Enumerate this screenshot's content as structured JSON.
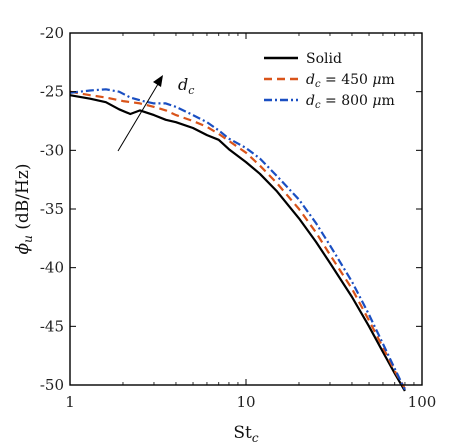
{
  "chart_data": {
    "type": "line",
    "xlabel": "St",
    "xlabel_sub": "c",
    "ylabel": "ϕ",
    "ylabel_sub": "u",
    "ylabel_unit": "(dB/Hz)",
    "xscale": "log",
    "xlim": [
      1,
      100
    ],
    "ylim": [
      -50,
      -20
    ],
    "x_ticks": [
      1,
      10,
      100
    ],
    "x_tick_labels": [
      "1",
      "10",
      "100"
    ],
    "y_ticks": [
      -50,
      -45,
      -40,
      -35,
      -30,
      -25,
      -20
    ],
    "y_tick_labels": [
      "-50",
      "-45",
      "-40",
      "-35",
      "-30",
      "-25",
      "-20"
    ],
    "grid": false,
    "legend_position": "top-right",
    "annotation": {
      "text": "d",
      "sub": "c"
    },
    "series": [
      {
        "name": "Solid",
        "legend_parts": [
          "Solid"
        ],
        "color": "#000000",
        "style": "solid",
        "x": [
          1,
          1.3,
          1.6,
          1.9,
          2.2,
          2.5,
          3.0,
          3.5,
          4.0,
          5.0,
          6.0,
          7.0,
          8.0,
          10,
          12,
          15,
          20,
          25,
          30,
          40,
          50,
          60,
          70,
          80
        ],
        "y": [
          -25.3,
          -25.6,
          -25.9,
          -26.5,
          -26.9,
          -26.6,
          -27.0,
          -27.4,
          -27.6,
          -28.1,
          -28.7,
          -29.1,
          -29.9,
          -31.0,
          -32.0,
          -33.5,
          -35.8,
          -37.8,
          -39.6,
          -42.5,
          -45.0,
          -47.2,
          -49.0,
          -50.5
        ]
      },
      {
        "name": "d_c = 450 µm",
        "legend_parts": [
          "d",
          "c",
          " = 450 ",
          "μ",
          "m"
        ],
        "color": "#d9541a",
        "style": "dashed",
        "x": [
          1,
          1.3,
          1.6,
          2.0,
          2.5,
          3.0,
          3.5,
          4.0,
          5.0,
          6.0,
          7.0,
          8.0,
          10,
          12,
          15,
          20,
          25,
          30,
          40,
          50,
          60,
          70,
          80
        ],
        "y": [
          -25.0,
          -25.3,
          -25.5,
          -25.8,
          -26.0,
          -26.3,
          -26.6,
          -27.0,
          -27.5,
          -28.0,
          -28.6,
          -29.2,
          -30.2,
          -31.3,
          -32.8,
          -35.0,
          -37.0,
          -38.9,
          -41.8,
          -44.5,
          -46.8,
          -48.8,
          -50.3
        ]
      },
      {
        "name": "d_c = 800 µm",
        "legend_parts": [
          "d",
          "c",
          " = 800 ",
          "μ",
          "m"
        ],
        "color": "#1a4fc2",
        "style": "dashdot",
        "x": [
          1,
          1.3,
          1.6,
          1.9,
          2.2,
          2.6,
          3.0,
          3.5,
          4.0,
          5.0,
          6.0,
          7.0,
          8.0,
          10,
          12,
          15,
          20,
          25,
          30,
          40,
          50,
          60,
          70,
          80
        ],
        "y": [
          -25.1,
          -24.9,
          -24.8,
          -25.0,
          -25.5,
          -25.8,
          -26.0,
          -26.0,
          -26.3,
          -27.0,
          -27.6,
          -28.3,
          -29.0,
          -29.8,
          -30.7,
          -32.2,
          -34.2,
          -36.2,
          -38.1,
          -41.2,
          -44.0,
          -46.5,
          -48.6,
          -50.4
        ]
      }
    ]
  }
}
